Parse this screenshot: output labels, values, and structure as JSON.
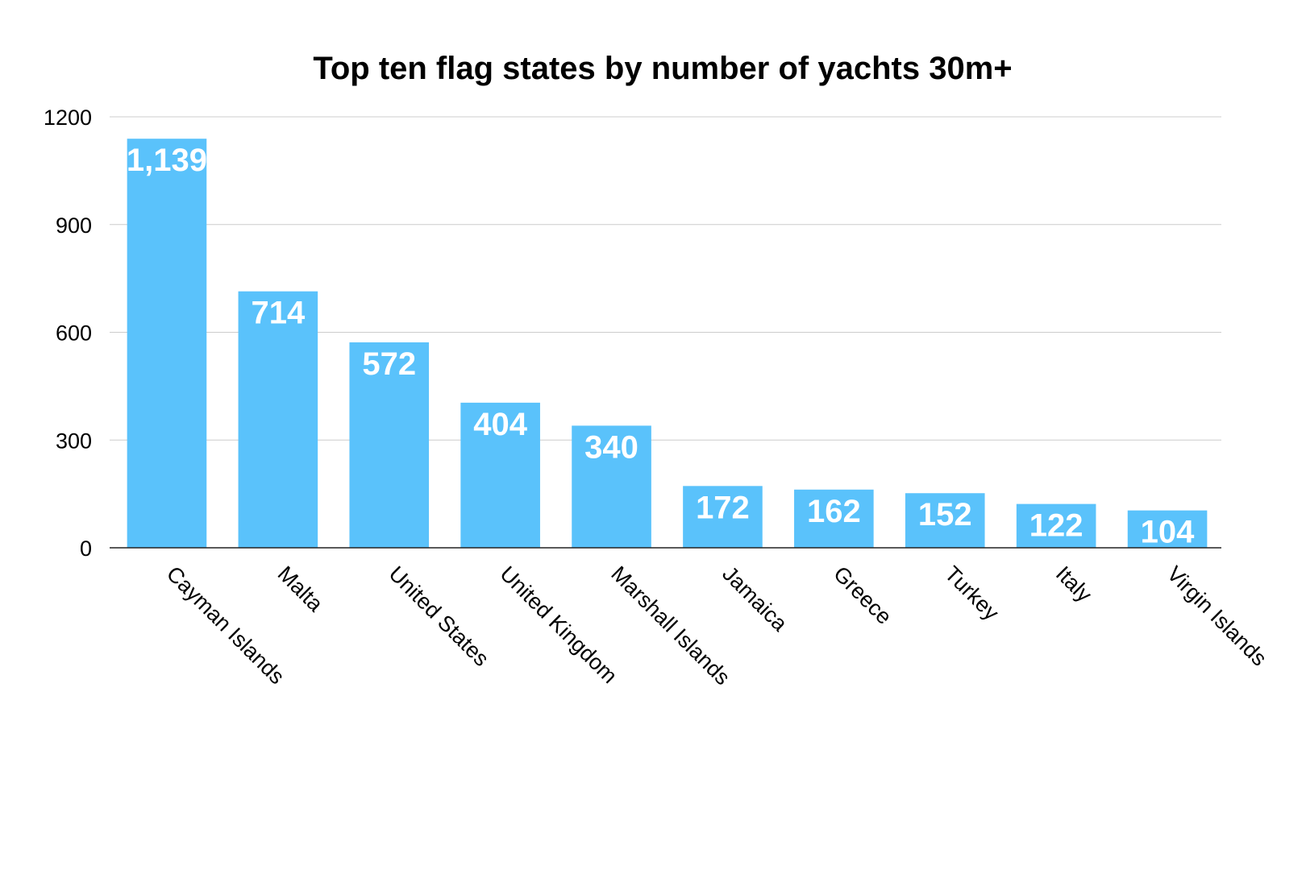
{
  "chart_data": {
    "type": "bar",
    "title": "Top ten flag states by number of yachts 30m+",
    "categories": [
      "Cayman Islands",
      "Malta",
      "United States",
      "United Kingdom",
      "Marshall Islands",
      "Jamaica",
      "Greece",
      "Turkey",
      "Italy",
      "Virgin Islands"
    ],
    "values": [
      1139,
      714,
      572,
      404,
      340,
      172,
      162,
      152,
      122,
      104
    ],
    "data_labels": [
      "1,139",
      "714",
      "572",
      "404",
      "340",
      "172",
      "162",
      "152",
      "122",
      "104"
    ],
    "yticks": [
      0,
      300,
      600,
      900,
      1200
    ],
    "ylim": [
      0,
      1200
    ],
    "xlabel": "",
    "ylabel": "",
    "grid": true,
    "legend": "none",
    "bar_color": "#5ac2fb"
  }
}
